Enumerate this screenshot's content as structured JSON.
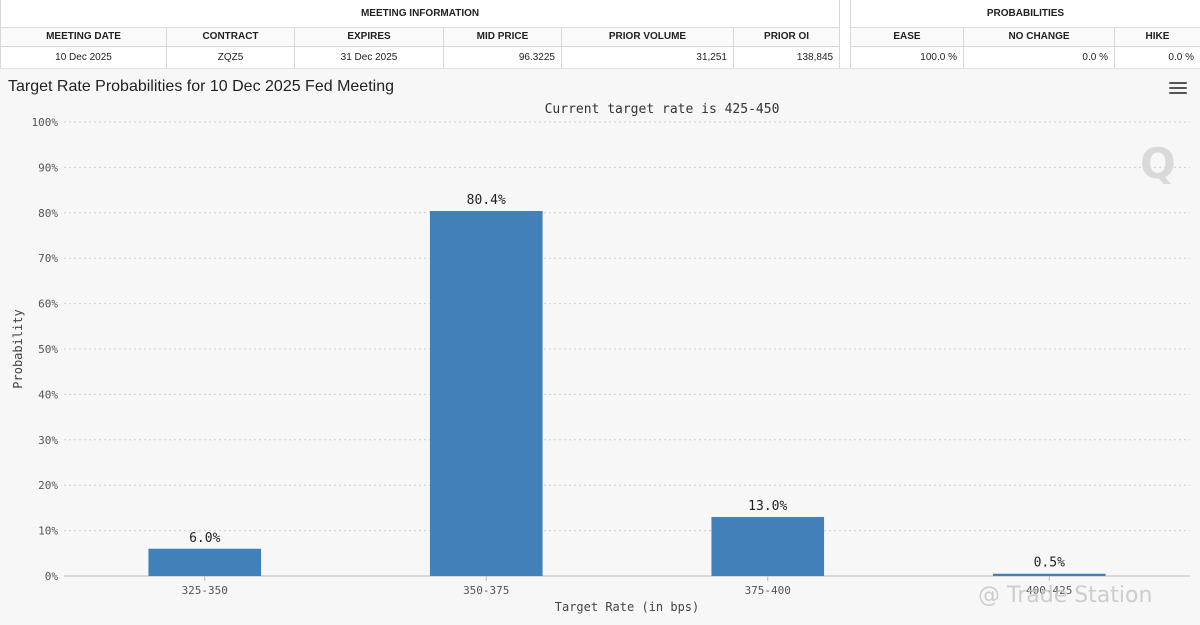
{
  "meeting_info": {
    "group_label": "MEETING INFORMATION",
    "headers": [
      "MEETING DATE",
      "CONTRACT",
      "EXPIRES",
      "MID PRICE",
      "PRIOR VOLUME",
      "PRIOR OI"
    ],
    "values": [
      "10 Dec 2025",
      "ZQZ5",
      "31 Dec 2025",
      "96.3225",
      "31,251",
      "138,845"
    ]
  },
  "probabilities": {
    "group_label": "PROBABILITIES",
    "headers": [
      "EASE",
      "NO CHANGE",
      "HIKE"
    ],
    "values": [
      "100.0 %",
      "0.0 %",
      "0.0 %"
    ]
  },
  "chart": {
    "title": "Target Rate Probabilities for 10 Dec 2025 Fed Meeting",
    "menu_icon": "hamburger-menu-icon",
    "logo_glyph": "Q",
    "watermark": "@ Trade Station"
  },
  "chart_data": {
    "type": "bar",
    "title": "Target Rate Probabilities for 10 Dec 2025 Fed Meeting",
    "subtitle": "Current target rate is 425-450",
    "xlabel": "Target Rate (in bps)",
    "ylabel": "Probability",
    "categories": [
      "325-350",
      "350-375",
      "375-400",
      "400-425"
    ],
    "values": [
      6.0,
      80.4,
      13.0,
      0.5
    ],
    "data_labels": [
      "6.0%",
      "80.4%",
      "13.0%",
      "0.5%"
    ],
    "ylim": [
      0,
      100
    ],
    "yticks": [
      0,
      10,
      20,
      30,
      40,
      50,
      60,
      70,
      80,
      90,
      100
    ],
    "ytick_labels": [
      "0%",
      "10%",
      "20%",
      "30%",
      "40%",
      "50%",
      "60%",
      "70%",
      "80%",
      "90%",
      "100%"
    ],
    "grid": true,
    "bar_color": "#4180b9"
  }
}
